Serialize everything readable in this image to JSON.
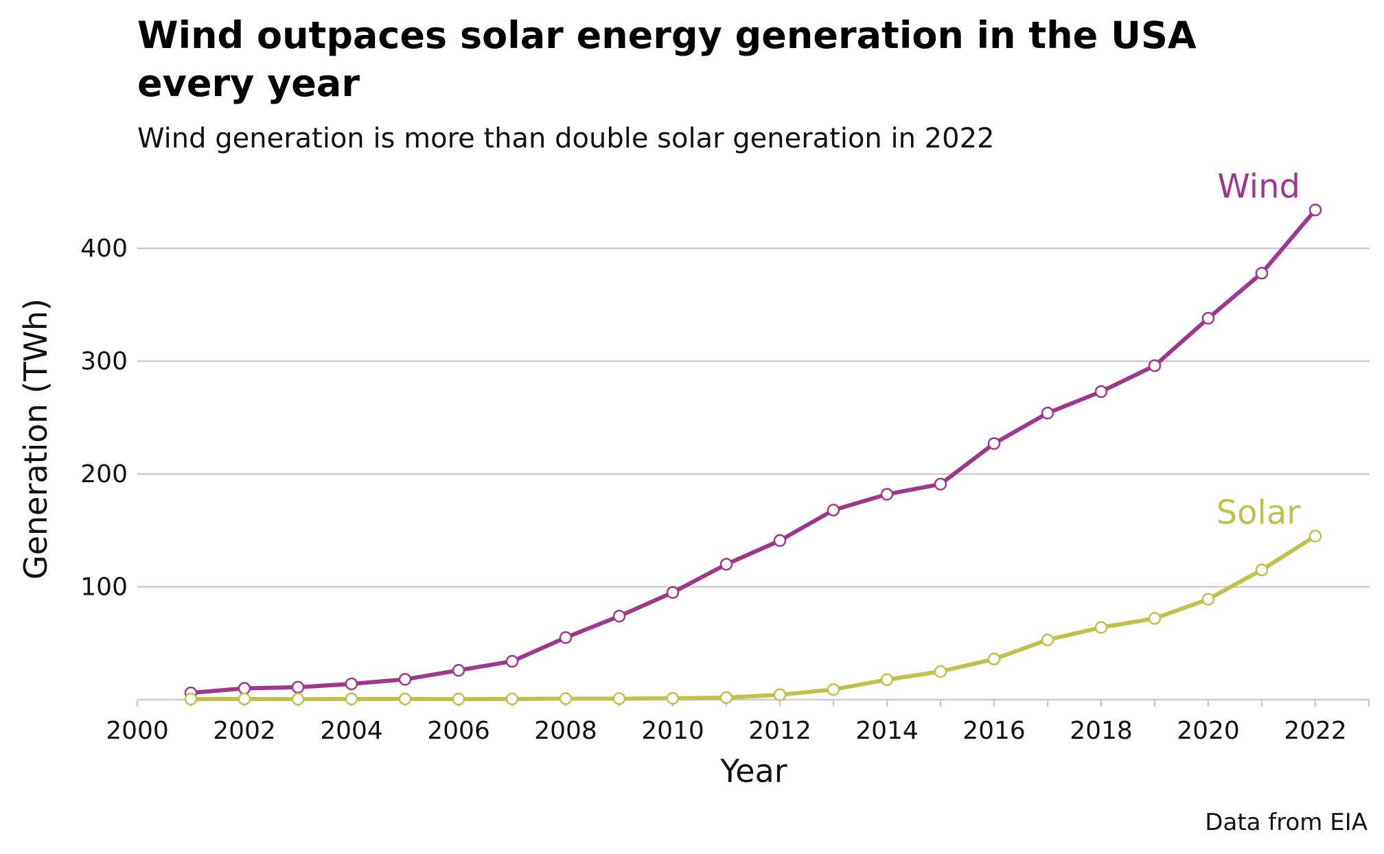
{
  "chart_data": {
    "type": "line",
    "title_lines": [
      "Wind outpaces solar energy generation in the USA",
      "every year"
    ],
    "subtitle": "Wind generation is more than double solar generation in 2022",
    "xlabel": "Year",
    "ylabel": "Generation (TWh)",
    "caption": "Data from EIA",
    "xlim": [
      2000,
      2023
    ],
    "ylim": [
      0,
      445
    ],
    "x_ticks": [
      "2000",
      "2002",
      "2004",
      "2006",
      "2008",
      "2010",
      "2012",
      "2014",
      "2016",
      "2018",
      "2020",
      "2022"
    ],
    "y_ticks": [
      "100",
      "200",
      "300",
      "400"
    ],
    "grid": "horizontal",
    "x": [
      2001,
      2002,
      2003,
      2004,
      2005,
      2006,
      2007,
      2008,
      2009,
      2010,
      2011,
      2012,
      2013,
      2014,
      2015,
      2016,
      2017,
      2018,
      2019,
      2020,
      2021,
      2022
    ],
    "series": [
      {
        "name": "Wind",
        "color": "#a0378f",
        "values": [
          6,
          10,
          11,
          14,
          18,
          26,
          34,
          55,
          74,
          95,
          120,
          141,
          168,
          182,
          191,
          227,
          254,
          273,
          296,
          338,
          378,
          434
        ]
      },
      {
        "name": "Solar",
        "color": "#c2c04c",
        "values": [
          0.5,
          0.6,
          0.5,
          0.6,
          0.6,
          0.5,
          0.6,
          0.9,
          0.9,
          1.2,
          1.8,
          4.3,
          9,
          17.7,
          24.9,
          36,
          53,
          64,
          72,
          89,
          115,
          145
        ]
      }
    ]
  }
}
